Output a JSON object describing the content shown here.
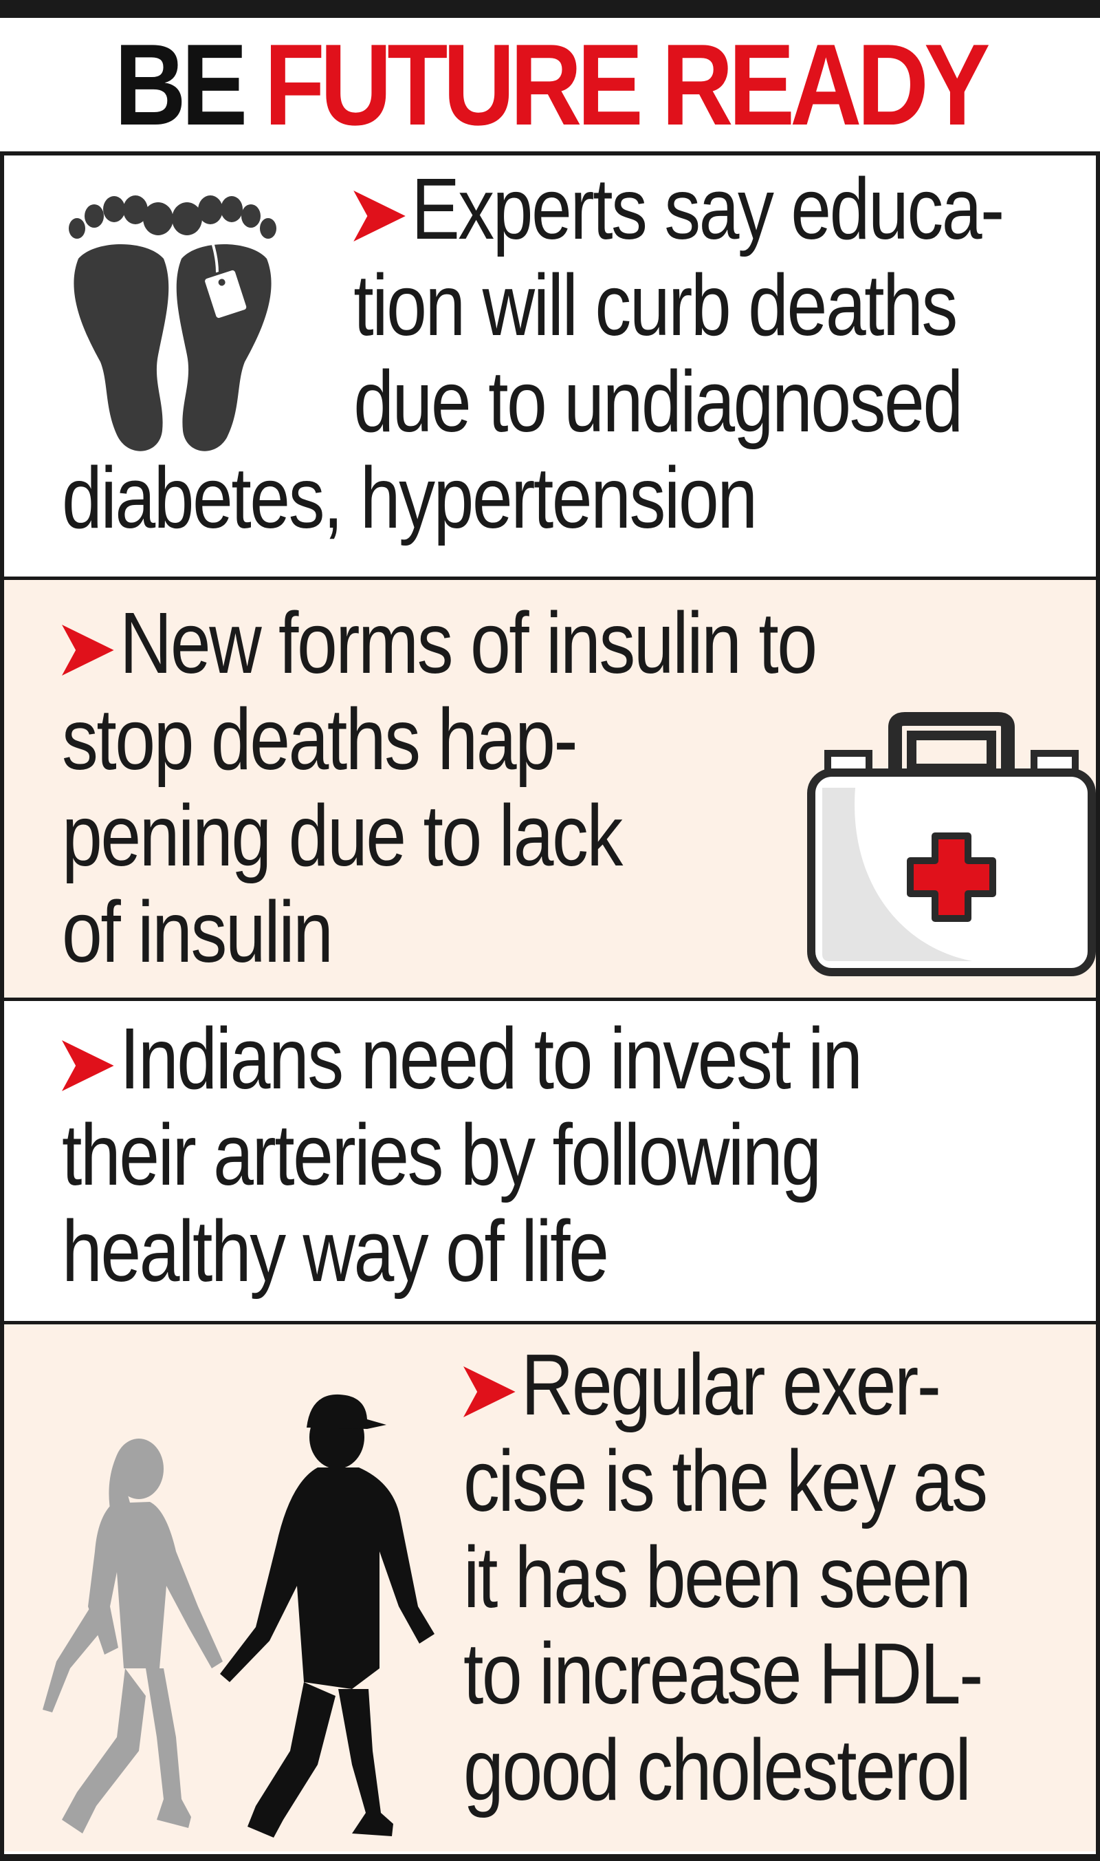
{
  "header": {
    "title_word1": "BE",
    "title_word2": "FUTURE READY"
  },
  "colors": {
    "accent_red": "#e0111b",
    "ink": "#1a1a1a",
    "tint_panel": "#fdf1e7",
    "gray_figure": "#a3a3a3"
  },
  "panels": [
    {
      "icon": "footprints-with-toe-tag-icon",
      "lines": [
        "Experts say educa-",
        "tion will curb deaths",
        "due to undiagnosed",
        "diabetes, hypertension"
      ]
    },
    {
      "icon": "first-aid-kit-icon",
      "lines": [
        "New forms of insulin to",
        "stop deaths hap-",
        "pening due to lack",
        "of insulin"
      ]
    },
    {
      "icon": "",
      "lines": [
        "Indians need to invest in",
        "their arteries by following",
        "healthy way of life"
      ]
    },
    {
      "icon": "walking-couple-icon",
      "lines": [
        "Regular exer-",
        "cise is the key as",
        "it has been seen",
        "to increase HDL-",
        "good cholesterol"
      ]
    }
  ]
}
